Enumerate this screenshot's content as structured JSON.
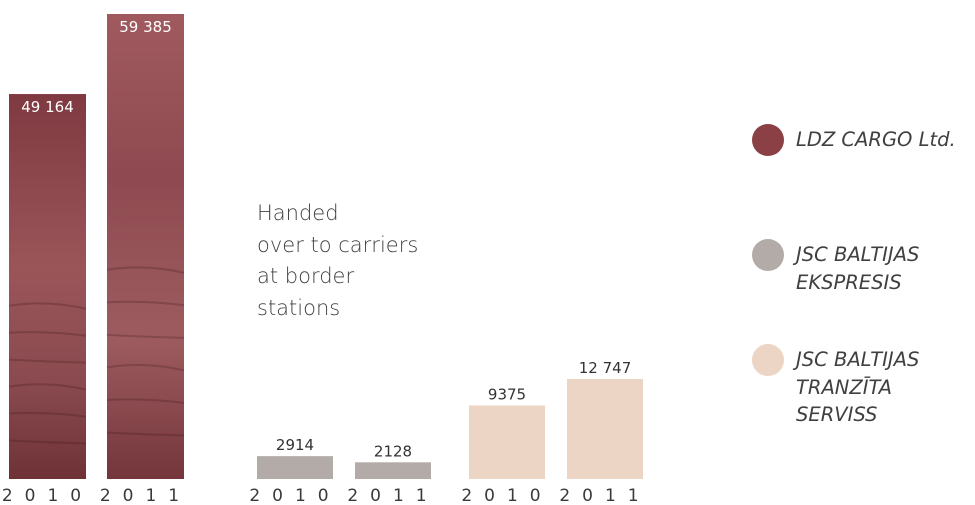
{
  "chart_data": {
    "type": "bar",
    "annotation": "Handed\nover to carriers\nat border\nstations",
    "categories": [
      "2010",
      "2011"
    ],
    "series": [
      {
        "name": "LDZ CARGO Ltd.",
        "values": [
          49164,
          59385
        ],
        "labels": [
          "49 164",
          "59 385"
        ],
        "color": "#8b4045"
      },
      {
        "name": "JSC BALTIJAS EKSPRESIS",
        "values": [
          2914,
          2128
        ],
        "labels": [
          "2914",
          "2128"
        ],
        "color": "#b2aba8"
      },
      {
        "name": "JSC BALTIJAS TRANZĪTA SERVISS",
        "values": [
          9375,
          12747
        ],
        "labels": [
          "9375",
          "12 747"
        ],
        "color": "#ecd5c4"
      }
    ]
  },
  "legend": [
    {
      "label": "LDZ CARGO Ltd.",
      "color": "#8b4045"
    },
    {
      "label": "JSC BALTIJAS\nEKSPRESIS",
      "color": "#b2aba8"
    },
    {
      "label": "JSC BALTIJAS\nTRANZĪTA SERVISS",
      "color": "#ecd5c4"
    }
  ]
}
